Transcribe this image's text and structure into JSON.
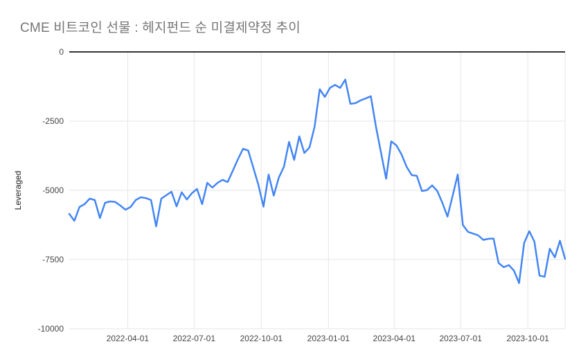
{
  "header": {
    "title": "CME 비트코인 선물 : 헤지펀드 순 미결제약정 추이",
    "title_color": "#757575"
  },
  "axes": {
    "grid_color": "#e6e6e6",
    "zero_axis_color": "#333333",
    "tick_label_color": "#444444",
    "y_axis_title_color": "#222222"
  },
  "chart_data": {
    "type": "line",
    "title": "CME 비트코인 선물 : 헤지펀드 순 미결제약정 추이",
    "xlabel": "",
    "ylabel": "Leveraged",
    "legend": "none",
    "grid": true,
    "series_name": "Leveraged",
    "series_color": "#4285f4",
    "line_width": 2.5,
    "ylim": [
      -10000,
      0
    ],
    "yticks": [
      {
        "value": 0,
        "label": "0"
      },
      {
        "value": -2500,
        "label": "-2500"
      },
      {
        "value": -5000,
        "label": "-5000"
      },
      {
        "value": -7500,
        "label": "-7500"
      },
      {
        "value": -10000,
        "label": "-10000"
      }
    ],
    "xticks": [
      {
        "date": "2022-04-01",
        "label": "2022-04-01"
      },
      {
        "date": "2022-07-01",
        "label": "2022-07-01"
      },
      {
        "date": "2022-10-01",
        "label": "2022-10-01"
      },
      {
        "date": "2023-01-01",
        "label": "2023-01-01"
      },
      {
        "date": "2023-04-01",
        "label": "2023-04-01"
      },
      {
        "date": "2023-07-01",
        "label": "2023-07-01"
      },
      {
        "date": "2023-10-01",
        "label": "2023-10-01"
      }
    ],
    "x": [
      "2022-01-11",
      "2022-01-18",
      "2022-01-25",
      "2022-02-01",
      "2022-02-08",
      "2022-02-15",
      "2022-02-22",
      "2022-03-01",
      "2022-03-08",
      "2022-03-15",
      "2022-03-22",
      "2022-03-29",
      "2022-04-05",
      "2022-04-12",
      "2022-04-19",
      "2022-04-26",
      "2022-05-03",
      "2022-05-10",
      "2022-05-17",
      "2022-05-24",
      "2022-05-31",
      "2022-06-07",
      "2022-06-14",
      "2022-06-21",
      "2022-06-28",
      "2022-07-05",
      "2022-07-12",
      "2022-07-19",
      "2022-07-26",
      "2022-08-02",
      "2022-08-09",
      "2022-08-16",
      "2022-08-23",
      "2022-08-30",
      "2022-09-06",
      "2022-09-13",
      "2022-09-20",
      "2022-09-27",
      "2022-10-04",
      "2022-10-11",
      "2022-10-18",
      "2022-10-25",
      "2022-11-01",
      "2022-11-08",
      "2022-11-15",
      "2022-11-22",
      "2022-11-29",
      "2022-12-06",
      "2022-12-13",
      "2022-12-20",
      "2022-12-27",
      "2023-01-03",
      "2023-01-10",
      "2023-01-17",
      "2023-01-24",
      "2023-01-31",
      "2023-02-07",
      "2023-02-14",
      "2023-02-21",
      "2023-02-28",
      "2023-03-07",
      "2023-03-14",
      "2023-03-21",
      "2023-03-28",
      "2023-04-04",
      "2023-04-11",
      "2023-04-18",
      "2023-04-25",
      "2023-05-02",
      "2023-05-09",
      "2023-05-16",
      "2023-05-23",
      "2023-05-30",
      "2023-06-06",
      "2023-06-13",
      "2023-06-20",
      "2023-06-27",
      "2023-07-04",
      "2023-07-11",
      "2023-07-18",
      "2023-07-25",
      "2023-08-01",
      "2023-08-08",
      "2023-08-15",
      "2023-08-22",
      "2023-08-29",
      "2023-09-05",
      "2023-09-12",
      "2023-09-19",
      "2023-09-26",
      "2023-10-03",
      "2023-10-10",
      "2023-10-17",
      "2023-10-24",
      "2023-10-31",
      "2023-11-07",
      "2023-11-14",
      "2023-11-21"
    ],
    "values": [
      -5850,
      -6100,
      -5600,
      -5500,
      -5300,
      -5350,
      -6000,
      -5450,
      -5400,
      -5420,
      -5550,
      -5700,
      -5600,
      -5350,
      -5250,
      -5280,
      -5350,
      -6300,
      -5300,
      -5175,
      -5050,
      -5580,
      -5070,
      -5330,
      -5100,
      -4950,
      -5500,
      -4730,
      -4900,
      -4730,
      -4620,
      -4700,
      -4290,
      -3875,
      -3500,
      -3560,
      -4170,
      -4800,
      -5590,
      -4430,
      -5190,
      -4540,
      -4150,
      -3250,
      -3900,
      -3050,
      -3650,
      -3450,
      -2700,
      -1350,
      -1625,
      -1300,
      -1190,
      -1300,
      -1000,
      -1875,
      -1850,
      -1750,
      -1680,
      -1600,
      -2700,
      -3650,
      -4580,
      -3230,
      -3375,
      -3700,
      -4150,
      -4450,
      -4475,
      -5025,
      -4990,
      -4820,
      -5025,
      -5450,
      -5950,
      -5200,
      -4430,
      -6250,
      -6500,
      -6560,
      -6625,
      -6790,
      -6750,
      -6740,
      -7625,
      -7775,
      -7700,
      -7900,
      -8350,
      -6900,
      -6475,
      -6850,
      -8080,
      -8120,
      -7110,
      -7420,
      -6820,
      -7475
    ]
  }
}
